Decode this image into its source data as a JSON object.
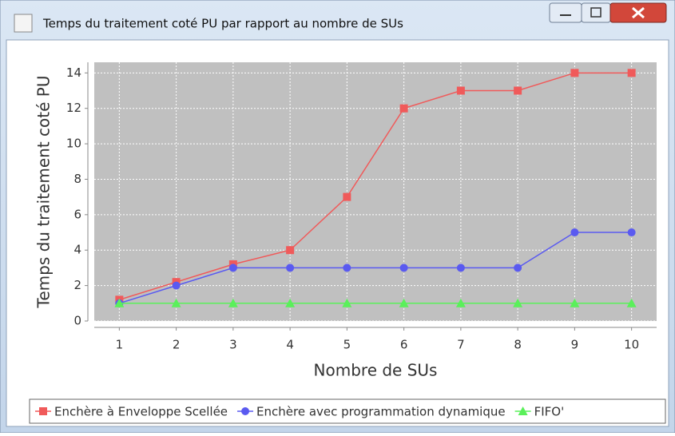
{
  "chart_data": {
    "type": "line",
    "title": "Temps du traitement coté PU par rapport au nombre de SUs",
    "xlabel": "Nombre de SUs",
    "ylabel": "Temps du traitement coté PU",
    "x": [
      1,
      2,
      3,
      4,
      5,
      6,
      7,
      8,
      9,
      10
    ],
    "series": [
      {
        "name": "Enchère à Enveloppe Scellée",
        "color": "#f05a5a",
        "marker": "square",
        "values": [
          1.2,
          2.2,
          3.2,
          4,
          7,
          12,
          13,
          13,
          14,
          14
        ]
      },
      {
        "name": "Enchère avec programmation dynamique",
        "color": "#5a5af0",
        "marker": "circle",
        "values": [
          1,
          2,
          3,
          3,
          3,
          3,
          3,
          3,
          5,
          5
        ]
      },
      {
        "name": "FIFO'",
        "color": "#5af05a",
        "marker": "triangle",
        "values": [
          1,
          1,
          1,
          1,
          1,
          1,
          1,
          1,
          1,
          1
        ]
      }
    ],
    "xlim": [
      0.56,
      10.44
    ],
    "xticks": [
      1,
      2,
      3,
      4,
      5,
      6,
      7,
      8,
      9,
      10
    ],
    "ylim": [
      0,
      14.6
    ],
    "yticks": [
      0,
      2,
      4,
      6,
      8,
      10,
      12,
      14
    ],
    "grid": true,
    "legend": "bottom"
  }
}
